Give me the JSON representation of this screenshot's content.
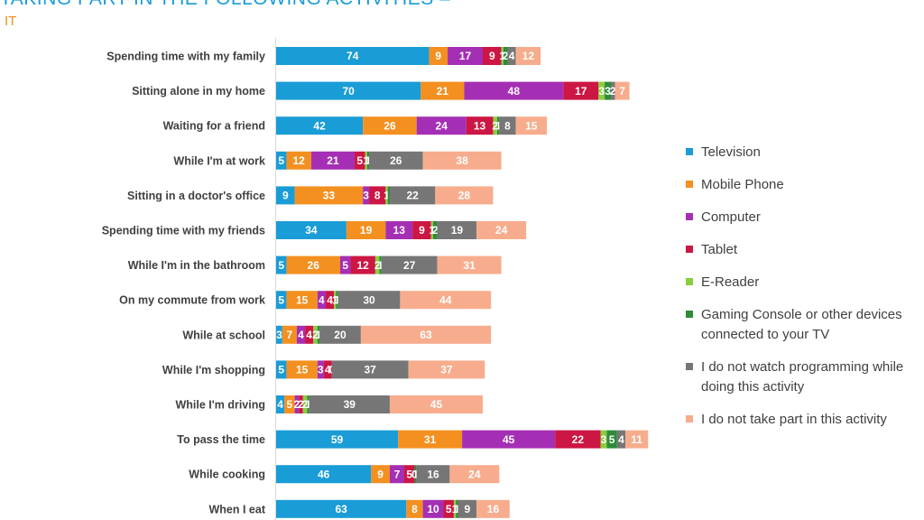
{
  "header": {
    "title": "TAKING PART IN THE FOLLOWING ACTIVITIES –",
    "subtitle": "IT"
  },
  "chart_data": {
    "type": "bar",
    "orientation": "horizontal",
    "stacked": true,
    "grid": false,
    "legend_position": "right",
    "categories": [
      "Spending time with my family",
      "Sitting alone in my home",
      "Waiting for a friend",
      "While I'm at work",
      "Sitting in a doctor's office",
      "Spending time with my friends",
      "While I'm in the bathroom",
      "On my commute from work",
      "While at school",
      "While I'm shopping",
      "While I'm driving",
      "To pass the time",
      "While cooking",
      "When I eat"
    ],
    "series": [
      {
        "name": "Television",
        "color": "#1a9cd6",
        "values": [
          74,
          70,
          42,
          5,
          9,
          34,
          5,
          5,
          3,
          5,
          4,
          59,
          46,
          63
        ]
      },
      {
        "name": "Mobile Phone",
        "color": "#f39020",
        "values": [
          9,
          21,
          26,
          12,
          33,
          19,
          26,
          15,
          7,
          15,
          5,
          31,
          9,
          8
        ]
      },
      {
        "name": "Computer",
        "color": "#a52fb4",
        "values": [
          17,
          48,
          24,
          21,
          3,
          13,
          5,
          4,
          4,
          3,
          2,
          45,
          7,
          10
        ]
      },
      {
        "name": "Tablet",
        "color": "#cc1643",
        "values": [
          9,
          17,
          13,
          5,
          8,
          9,
          12,
          4,
          4,
          4,
          2,
          22,
          5,
          5
        ]
      },
      {
        "name": "E-Reader",
        "color": "#8ccd3e",
        "values": [
          1,
          3,
          2,
          1,
          1,
          1,
          2,
          1,
          2,
          0,
          2,
          3,
          0,
          1
        ]
      },
      {
        "name": "Gaming Console or other devices connected to your TV",
        "color": "#2e8b3a",
        "values": [
          2,
          3,
          1,
          1,
          1,
          2,
          1,
          1,
          1,
          0,
          1,
          5,
          1,
          1
        ]
      },
      {
        "name": "I do not watch programming while doing this activity",
        "color": "#767676",
        "values": [
          4,
          2,
          8,
          26,
          22,
          19,
          27,
          30,
          20,
          37,
          39,
          4,
          16,
          9
        ]
      },
      {
        "name": "I do not take part in this activity",
        "color": "#f7ad8d",
        "values": [
          12,
          7,
          15,
          38,
          28,
          24,
          31,
          44,
          63,
          37,
          45,
          11,
          24,
          16
        ]
      }
    ],
    "data_labels": [
      [
        "74",
        "9",
        "17",
        "9",
        "1",
        "2",
        "4",
        "12"
      ],
      [
        "70",
        "21",
        "48",
        "17",
        "3",
        "3",
        "2",
        "7"
      ],
      [
        "42",
        "26",
        "24",
        "13",
        "2",
        "1",
        "8",
        "15"
      ],
      [
        "5",
        "12",
        "21",
        "5",
        "1",
        "1",
        "26",
        "38"
      ],
      [
        "9",
        "33",
        "3",
        "8",
        "1",
        "",
        "22",
        "28"
      ],
      [
        "34",
        "19",
        "13",
        "9",
        "1",
        "2",
        "19",
        "24"
      ],
      [
        "5",
        "26",
        "5",
        "12",
        "2",
        "1",
        "27",
        "31"
      ],
      [
        "5",
        "15",
        "4",
        "4",
        "1",
        "1",
        "30",
        "44"
      ],
      [
        "3",
        "7",
        "4",
        "4",
        "2",
        "1",
        "20",
        "63"
      ],
      [
        "5",
        "15",
        "3",
        "4",
        "0",
        "",
        "37",
        "37"
      ],
      [
        "4",
        "5",
        "2",
        "2",
        "2",
        "1",
        "39",
        "45"
      ],
      [
        "59",
        "31",
        "45",
        "22",
        "3",
        "5",
        "4",
        "11"
      ],
      [
        "46",
        "9",
        "7",
        "5",
        "0",
        "1",
        "16",
        "24"
      ],
      [
        "63",
        "8",
        "10",
        "5",
        "1",
        "1",
        "9",
        "16"
      ]
    ]
  }
}
